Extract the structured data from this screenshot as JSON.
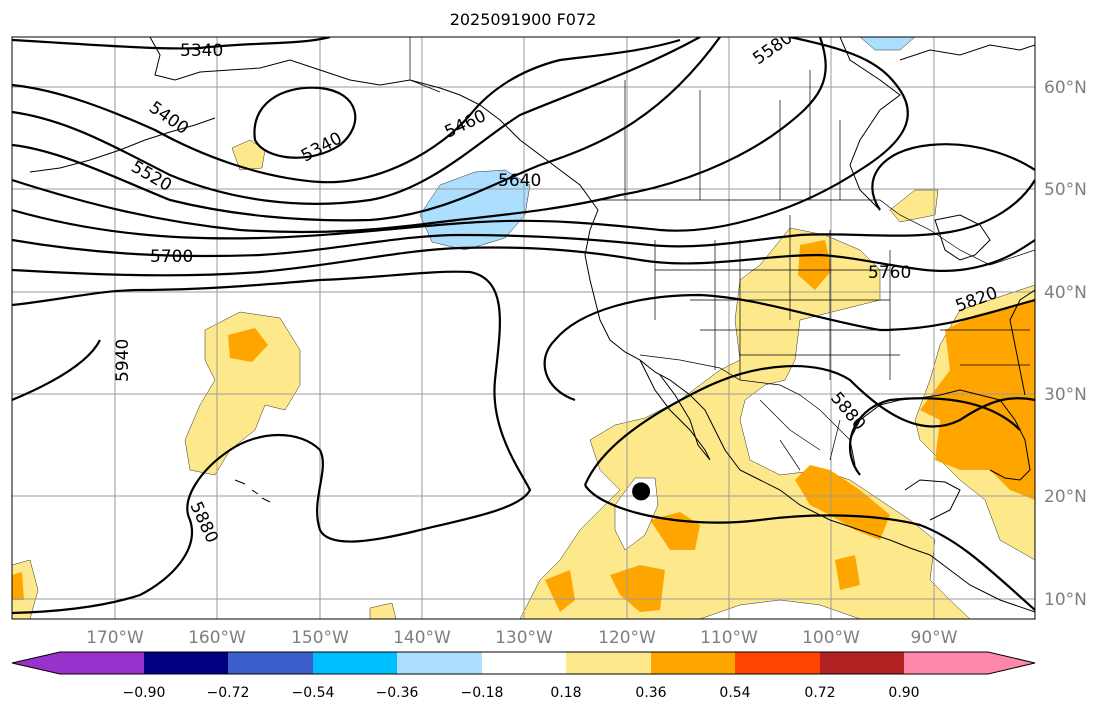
{
  "title": "2025091900 F072",
  "colors": {
    "shade_pos_018": "#fde98c",
    "shade_pos_036": "#ffa500",
    "shade_neg_018": "#acdffd",
    "colorbar": [
      "#9932cc",
      "#000080",
      "#3a5fcd",
      "#00bfff",
      "#acdffd",
      "#ffffff",
      "#fde98c",
      "#ffa500",
      "#ff4500",
      "#b22222",
      "#ff88aa"
    ]
  },
  "lon_labels": [
    "170°W",
    "160°W",
    "150°W",
    "140°W",
    "130°W",
    "120°W",
    "110°W",
    "100°W",
    "90°W"
  ],
  "lat_labels": [
    "60°N",
    "50°N",
    "40°N",
    "30°N",
    "20°N",
    "10°N"
  ],
  "colorbar_ticks": [
    "−0.90",
    "−0.72",
    "−0.54",
    "−0.36",
    "−0.18",
    "0.18",
    "0.36",
    "0.54",
    "0.72",
    "0.90"
  ],
  "contour_labels": [
    "5340",
    "5340",
    "5400",
    "5460",
    "5520",
    "5580",
    "5640",
    "5700",
    "5760",
    "5820",
    "5880",
    "5880",
    "5940"
  ],
  "marker": {
    "name": "point",
    "lon": -118.5,
    "lat": 20.5
  }
}
